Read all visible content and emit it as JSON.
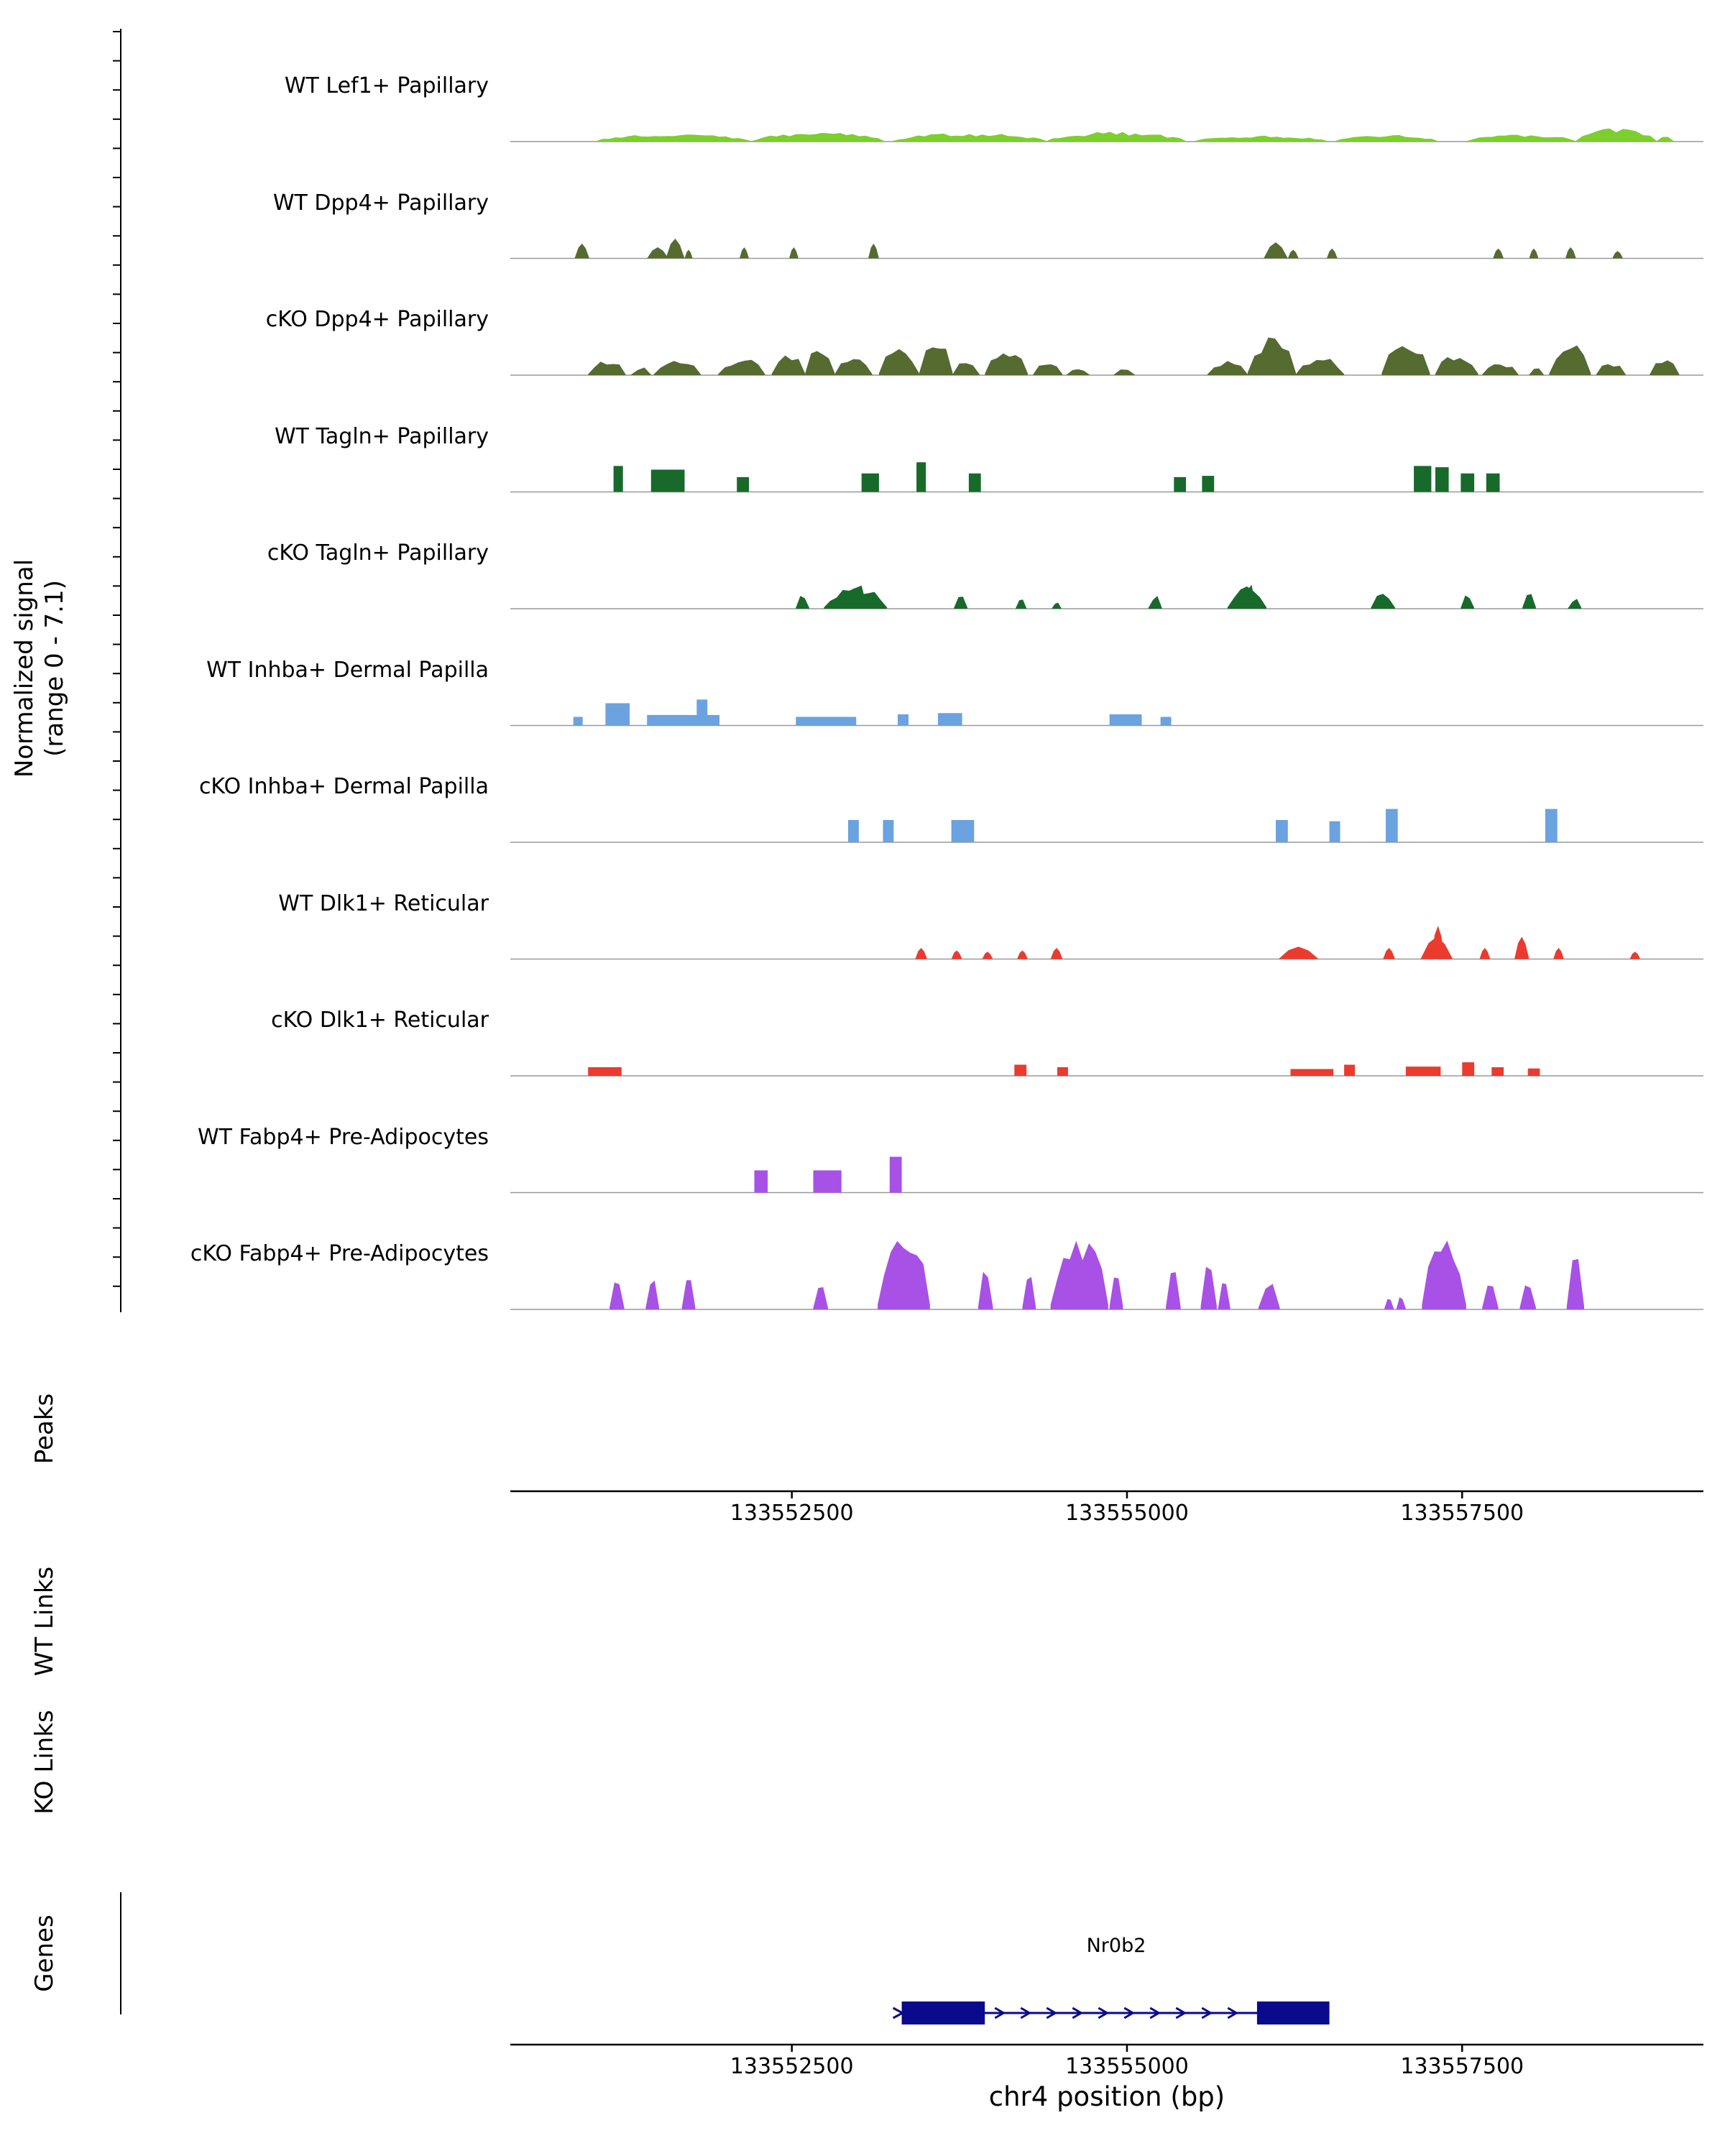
{
  "section_labels": {
    "signal_axis_line1": "Normalized signal",
    "signal_axis_line2": "(range 0 - 7.1)",
    "peaks": "Peaks",
    "wt_links": "WT Links",
    "ko_links": "KO Links",
    "genes": "Genes"
  },
  "x_axis": {
    "ticks": [
      133552500,
      133555000,
      133557500
    ],
    "tick_labels": [
      "133552500",
      "133555000",
      "133557500"
    ],
    "label": "chr4 position (bp)"
  },
  "chart_data": {
    "type": "area",
    "subtype": "genome-coverage-tracks",
    "title": "",
    "ylabel": "Normalized signal (range 0 - 7.1)",
    "yrange": [
      0,
      7.1
    ],
    "xlabel": "chr4 position (bp)",
    "region": {
      "chrom": "chr4",
      "start": 133550400,
      "end": 133559300
    },
    "tracks": [
      {
        "label": "WT Lef1+ Papillary",
        "color": "#7CCF2C",
        "profile": "jagged",
        "segments": [
          [
            133551040,
            133552200,
            0.65
          ],
          [
            133552200,
            133553190,
            0.75
          ],
          [
            133553250,
            133554400,
            0.7
          ],
          [
            133554400,
            133555440,
            0.8
          ],
          [
            133555500,
            133556500,
            0.5
          ],
          [
            133556550,
            133557320,
            0.55
          ],
          [
            133557530,
            133558350,
            0.6
          ],
          [
            133558350,
            133558950,
            1.15
          ],
          [
            133558950,
            133559080,
            0.5
          ]
        ]
      },
      {
        "label": "WT Dpp4+ Papillary",
        "color": "#556B2F",
        "profile": "peak",
        "segments": [
          [
            133550880,
            133550990,
            1.2
          ],
          [
            133551420,
            133551580,
            0.9
          ],
          [
            133551560,
            133551700,
            1.6
          ],
          [
            133551700,
            133551760,
            0.7
          ],
          [
            133552110,
            133552180,
            0.9
          ],
          [
            133552480,
            133552550,
            0.9
          ],
          [
            133553070,
            133553150,
            1.2
          ],
          [
            133556020,
            133556200,
            1.3
          ],
          [
            133556200,
            133556280,
            0.7
          ],
          [
            133556490,
            133556570,
            0.8
          ],
          [
            133557730,
            133557810,
            0.8
          ],
          [
            133558000,
            133558070,
            0.8
          ],
          [
            133558270,
            133558350,
            0.9
          ],
          [
            133558620,
            133558700,
            0.6
          ]
        ]
      },
      {
        "label": "cKO Dpp4+ Papillary",
        "color": "#556B2F",
        "profile": "jagged",
        "segments": [
          [
            133550980,
            133551260,
            1.3
          ],
          [
            133551300,
            133551450,
            0.7
          ],
          [
            133551470,
            133551820,
            1.2
          ],
          [
            133551950,
            133552300,
            1.4
          ],
          [
            133552350,
            133552600,
            1.8
          ],
          [
            133552600,
            133552820,
            2.6
          ],
          [
            133552820,
            133553100,
            1.4
          ],
          [
            133553150,
            133553450,
            2.3
          ],
          [
            133553450,
            133553700,
            2.8
          ],
          [
            133553700,
            133553900,
            1.2
          ],
          [
            133553940,
            133554260,
            2.2
          ],
          [
            133554300,
            133554520,
            1.0
          ],
          [
            133554550,
            133554720,
            0.6
          ],
          [
            133554900,
            133555060,
            0.5
          ],
          [
            133555600,
            133555900,
            1.2
          ],
          [
            133555900,
            133556260,
            3.2
          ],
          [
            133556260,
            133556620,
            1.5
          ],
          [
            133556900,
            133557260,
            2.6
          ],
          [
            133557300,
            133557620,
            1.8
          ],
          [
            133557650,
            133557920,
            1.0
          ],
          [
            133558000,
            133558110,
            0.6
          ],
          [
            133558150,
            133558460,
            2.6
          ],
          [
            133558500,
            133558720,
            1.0
          ],
          [
            133558900,
            133559120,
            1.3
          ]
        ]
      },
      {
        "label": "WT Tagln+ Papillary",
        "color": "#176A2A",
        "profile": "block",
        "segments": [
          [
            133551170,
            133551240,
            2.1
          ],
          [
            133551450,
            133551700,
            1.8
          ],
          [
            133552090,
            133552180,
            1.2
          ],
          [
            133553020,
            133553150,
            1.5
          ],
          [
            133553430,
            133553500,
            2.4
          ],
          [
            133553820,
            133553910,
            1.5
          ],
          [
            133555350,
            133555440,
            1.2
          ],
          [
            133555560,
            133555650,
            1.3
          ],
          [
            133557140,
            133557270,
            2.1
          ],
          [
            133557300,
            133557400,
            2.0
          ],
          [
            133557490,
            133557590,
            1.5
          ],
          [
            133557680,
            133557780,
            1.5
          ]
        ]
      },
      {
        "label": "cKO Tagln+ Papillary",
        "color": "#176A2A",
        "profile": "jagged",
        "segments": [
          [
            133552530,
            133552630,
            1.4
          ],
          [
            133552740,
            133553210,
            1.8
          ],
          [
            133552940,
            133553060,
            2.6
          ],
          [
            133553710,
            133553810,
            1.5
          ],
          [
            133554170,
            133554250,
            0.9
          ],
          [
            133554440,
            133554510,
            0.6
          ],
          [
            133555160,
            133555260,
            1.2
          ],
          [
            133555750,
            133556040,
            1.9
          ],
          [
            133555870,
            133555960,
            2.5
          ],
          [
            133556820,
            133557000,
            1.5
          ],
          [
            133557490,
            133557590,
            1.2
          ],
          [
            133557950,
            133558050,
            1.9
          ],
          [
            133558290,
            133558390,
            0.9
          ]
        ]
      },
      {
        "label": "WT Inhba+ Dermal Papilla",
        "color": "#6BA2E0",
        "profile": "block",
        "segments": [
          [
            133550870,
            133550940,
            0.7
          ],
          [
            133551110,
            133551290,
            1.8
          ],
          [
            133551420,
            133551960,
            0.85
          ],
          [
            133551790,
            133551870,
            2.1
          ],
          [
            133552530,
            133552980,
            0.7
          ],
          [
            133553290,
            133553370,
            0.9
          ],
          [
            133553590,
            133553770,
            1.0
          ],
          [
            133554870,
            133555110,
            0.9
          ],
          [
            133555250,
            133555330,
            0.7
          ]
        ]
      },
      {
        "label": "cKO Inhba+ Dermal Papilla",
        "color": "#6BA2E0",
        "profile": "block",
        "segments": [
          [
            133552920,
            133553000,
            1.8
          ],
          [
            133553180,
            133553260,
            1.8
          ],
          [
            133553690,
            133553860,
            1.8
          ],
          [
            133556110,
            133556200,
            1.8
          ],
          [
            133556510,
            133556590,
            1.7
          ],
          [
            133556930,
            133557020,
            2.7
          ],
          [
            133558120,
            133558210,
            2.7
          ]
        ]
      },
      {
        "label": "WT Dlk1+ Reticular",
        "color": "#EA3B2E",
        "profile": "peak",
        "segments": [
          [
            133553420,
            133553510,
            0.9
          ],
          [
            133553690,
            133553770,
            0.7
          ],
          [
            133553920,
            133554000,
            0.6
          ],
          [
            133554180,
            133554260,
            0.7
          ],
          [
            133554430,
            133554520,
            0.9
          ],
          [
            133556130,
            133556430,
            1.0
          ],
          [
            133556910,
            133557000,
            0.9
          ],
          [
            133557190,
            133557430,
            1.8
          ],
          [
            133557270,
            133557370,
            2.7
          ],
          [
            133557630,
            133557710,
            0.9
          ],
          [
            133557890,
            133558000,
            1.8
          ],
          [
            133558180,
            133558260,
            0.9
          ],
          [
            133558750,
            133558830,
            0.6
          ]
        ]
      },
      {
        "label": "cKO Dlk1+ Reticular",
        "color": "#EA3B2E",
        "profile": "block",
        "segments": [
          [
            133550980,
            133551230,
            0.7
          ],
          [
            133554160,
            133554250,
            0.9
          ],
          [
            133554480,
            133554560,
            0.7
          ],
          [
            133556220,
            133556540,
            0.55
          ],
          [
            133556620,
            133556700,
            0.9
          ],
          [
            133557080,
            133557340,
            0.75
          ],
          [
            133557500,
            133557590,
            1.1
          ],
          [
            133557720,
            133557810,
            0.7
          ],
          [
            133557990,
            133558080,
            0.6
          ]
        ]
      },
      {
        "label": "WT Fabp4+ Pre-Adipocytes",
        "color": "#A851E6",
        "profile": "block",
        "segments": [
          [
            133552220,
            133552320,
            1.8
          ],
          [
            133552660,
            133552870,
            1.8
          ],
          [
            133553230,
            133553320,
            2.9
          ]
        ]
      },
      {
        "label": "cKO Fabp4+ Pre-Adipocytes",
        "color": "#A851E6",
        "profile": "jagged",
        "segments": [
          [
            133551140,
            133551250,
            2.4
          ],
          [
            133551410,
            133551510,
            2.6
          ],
          [
            133551680,
            133551780,
            2.6
          ],
          [
            133552660,
            133552770,
            2.1
          ],
          [
            133553140,
            133553530,
            6.5
          ],
          [
            133553890,
            133554000,
            3.3
          ],
          [
            133554220,
            133554320,
            3.6
          ],
          [
            133554430,
            133554860,
            6.3
          ],
          [
            133554870,
            133554970,
            4.1
          ],
          [
            133555290,
            133555400,
            3.5
          ],
          [
            133555550,
            133555670,
            4.7
          ],
          [
            133555680,
            133555770,
            2.3
          ],
          [
            133555980,
            133556140,
            2.3
          ],
          [
            133556920,
            133556990,
            1.1
          ],
          [
            133557010,
            133557080,
            1.1
          ],
          [
            133557200,
            133557530,
            6.0
          ],
          [
            133557650,
            133557770,
            2.6
          ],
          [
            133557930,
            133558050,
            2.6
          ],
          [
            133558280,
            133558410,
            4.4
          ]
        ]
      }
    ],
    "peaks": [],
    "wt_links": [],
    "ko_links": [],
    "gene": {
      "name": "Nr0b2",
      "strand": "+",
      "body": [
        133553320,
        133556510
      ],
      "exons": [
        [
          133553320,
          133553940
        ],
        [
          133555970,
          133556510
        ]
      ],
      "color": "#0A0A8C"
    }
  }
}
